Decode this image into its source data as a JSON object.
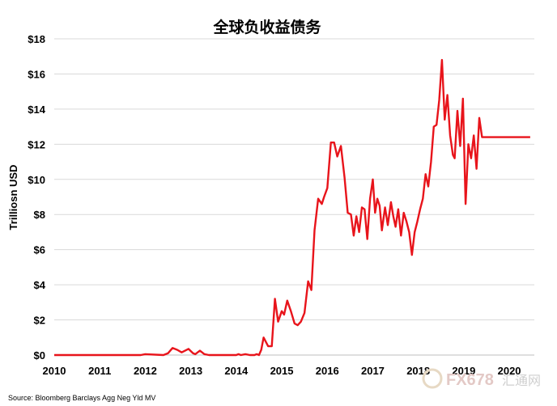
{
  "chart_data": {
    "type": "line",
    "title": "全球负收益债务",
    "ylabel": "Trilliosn USD",
    "xlabel": "",
    "xlim": [
      2010,
      2020.55
    ],
    "ylim": [
      0,
      18
    ],
    "x_ticks": [
      "2010",
      "2011",
      "2012",
      "2013",
      "2014",
      "2015",
      "2016",
      "2017",
      "2018",
      "2019",
      "2020"
    ],
    "y_ticks": [
      "$0",
      "$2",
      "$4",
      "$6",
      "$8",
      "$10",
      "$12",
      "$14",
      "$16",
      "$18"
    ],
    "grid": "horizontal",
    "line_color": "#e8141b",
    "series": [
      {
        "x": [
          2010.0,
          2011.0,
          2011.9,
          2012.0,
          2012.4,
          2012.5,
          2012.6,
          2012.7,
          2012.8,
          2012.95,
          2013.05,
          2013.1,
          2013.2,
          2013.3,
          2013.4,
          2014.0,
          2014.05,
          2014.1,
          2014.2,
          2014.3,
          2014.4,
          2014.45,
          2014.5,
          2014.55,
          2014.6,
          2014.7,
          2014.78,
          2014.85,
          2014.92,
          2015.0,
          2015.05,
          2015.12,
          2015.2,
          2015.28,
          2015.35,
          2015.42,
          2015.5,
          2015.58,
          2015.65,
          2015.72,
          2015.8,
          2015.88,
          2015.93,
          2016.0,
          2016.08,
          2016.15,
          2016.22,
          2016.3,
          2016.38,
          2016.45,
          2016.52,
          2016.58,
          2016.64,
          2016.7,
          2016.76,
          2016.82,
          2016.88,
          2016.94,
          2017.0,
          2017.05,
          2017.1,
          2017.15,
          2017.2,
          2017.27,
          2017.33,
          2017.4,
          2017.45,
          2017.5,
          2017.56,
          2017.62,
          2017.68,
          2017.74,
          2017.8,
          2017.86,
          2017.92,
          2017.98,
          2018.04,
          2018.1,
          2018.16,
          2018.22,
          2018.28,
          2018.34,
          2018.4,
          2018.46,
          2018.52,
          2018.58,
          2018.64,
          2018.7,
          2018.76,
          2018.8,
          2018.86,
          2018.92,
          2018.98,
          2019.04,
          2019.1,
          2019.16,
          2019.22,
          2019.28,
          2019.34,
          2019.4,
          2019.45,
          2019.5,
          2019.54,
          2019.58,
          2019.62,
          2019.66,
          2019.69,
          2019.72,
          2019.76,
          2019.8,
          2019.85,
          2019.9,
          2019.95,
          2020.0,
          2020.05,
          2020.1,
          2020.14,
          2020.18,
          2020.22,
          2020.26,
          2020.3,
          2020.34,
          2020.38,
          2020.42,
          2020.46
        ],
        "y": [
          0,
          0,
          0,
          0.05,
          0,
          0.1,
          0.4,
          0.3,
          0.15,
          0.35,
          0.1,
          0.05,
          0.25,
          0.05,
          0,
          0,
          0.05,
          0,
          0.05,
          0,
          0,
          0.05,
          0,
          0.3,
          1.0,
          0.5,
          0.5,
          3.2,
          1.9,
          2.5,
          2.3,
          3.1,
          2.5,
          1.8,
          1.7,
          1.9,
          2.4,
          4.2,
          3.7,
          7.1,
          8.9,
          8.6,
          9.0,
          9.5,
          12.1,
          12.1,
          11.3,
          11.9,
          10.1,
          8.1,
          8.0,
          6.8,
          7.9,
          7.0,
          8.4,
          8.3,
          6.6,
          8.9,
          10.0,
          8.1,
          8.9,
          8.5,
          7.1,
          8.4,
          7.4,
          8.7,
          7.9,
          7.3,
          8.3,
          6.8,
          8.1,
          7.6,
          7.0,
          5.7,
          7.0,
          7.6,
          8.3,
          8.9,
          10.3,
          9.6,
          11.0,
          13.0,
          13.1,
          14.5,
          16.8,
          13.4,
          14.8,
          12.5,
          11.4,
          11.2,
          13.9,
          11.9,
          14.6,
          8.6,
          12.0,
          11.2,
          12.5,
          10.6,
          13.5,
          12.4,
          12.4,
          12.4,
          12.4,
          12.4,
          12.4,
          12.4,
          12.4,
          12.4,
          12.4,
          12.4,
          12.4,
          12.4,
          12.4,
          12.4,
          12.4,
          12.4,
          12.4,
          12.4,
          12.4,
          12.4,
          12.4,
          12.4,
          12.4,
          12.4,
          12.4
        ]
      }
    ]
  },
  "source_text": "Source: Bloomberg Barclays Agg Neg Yld MV",
  "watermark": {
    "text": "FX678",
    "sub": "汇通网"
  }
}
